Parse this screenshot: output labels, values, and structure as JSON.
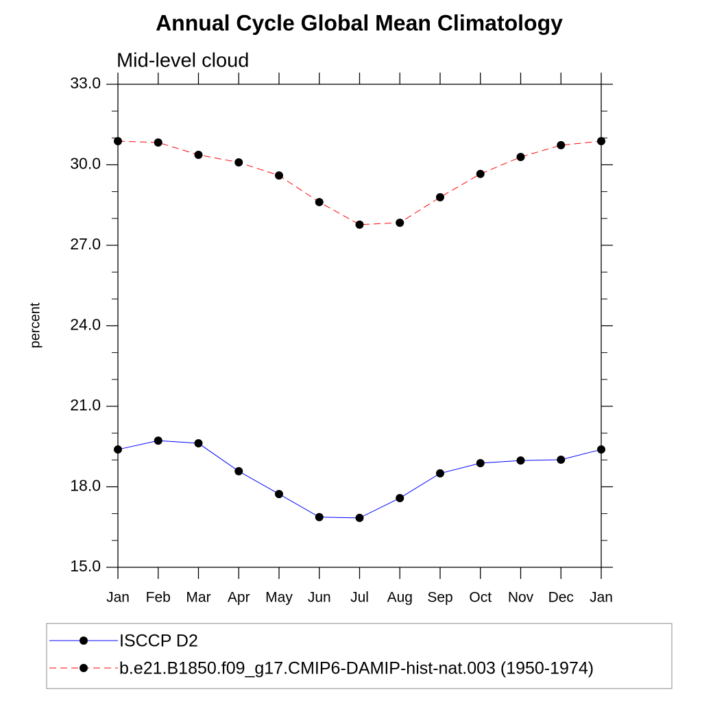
{
  "chart_data": {
    "type": "line",
    "title": "Annual Cycle Global Mean Climatology",
    "subtitle": "Mid-level cloud",
    "y_label": "percent",
    "categories": [
      "Jan",
      "Feb",
      "Mar",
      "Apr",
      "May",
      "Jun",
      "Jul",
      "Aug",
      "Sep",
      "Oct",
      "Nov",
      "Dec",
      "Jan"
    ],
    "series": [
      {
        "name": "ISCCP D2",
        "color": "#0000ff",
        "dash": "solid",
        "values": [
          19.39,
          19.72,
          19.62,
          18.58,
          17.73,
          16.87,
          16.84,
          17.58,
          18.5,
          18.88,
          18.98,
          19.01,
          19.39
        ]
      },
      {
        "name": "b.e21.B1850.f09_g17.CMIP6-DAMIP-hist-nat.003 (1950-1974)",
        "color": "#ff0000",
        "dash": "dashed",
        "values": [
          30.88,
          30.83,
          30.37,
          30.09,
          29.6,
          28.61,
          27.77,
          27.84,
          28.79,
          29.66,
          30.29,
          30.73,
          30.88
        ]
      }
    ],
    "ylim": [
      15,
      33
    ],
    "yticks": [
      {
        "value": 15,
        "label": "15.0"
      },
      {
        "value": 18,
        "label": "18.0"
      },
      {
        "value": 21,
        "label": "21.0"
      },
      {
        "value": 24,
        "label": "24.0"
      },
      {
        "value": 27,
        "label": "27.0"
      },
      {
        "value": 30,
        "label": "30.0"
      },
      {
        "value": 33,
        "label": "33.0"
      }
    ],
    "yminorticks": [
      16,
      17,
      19,
      20,
      22,
      23,
      25,
      26,
      28,
      29,
      31,
      32
    ],
    "marker_color": "#000000",
    "legend": "bottom"
  }
}
